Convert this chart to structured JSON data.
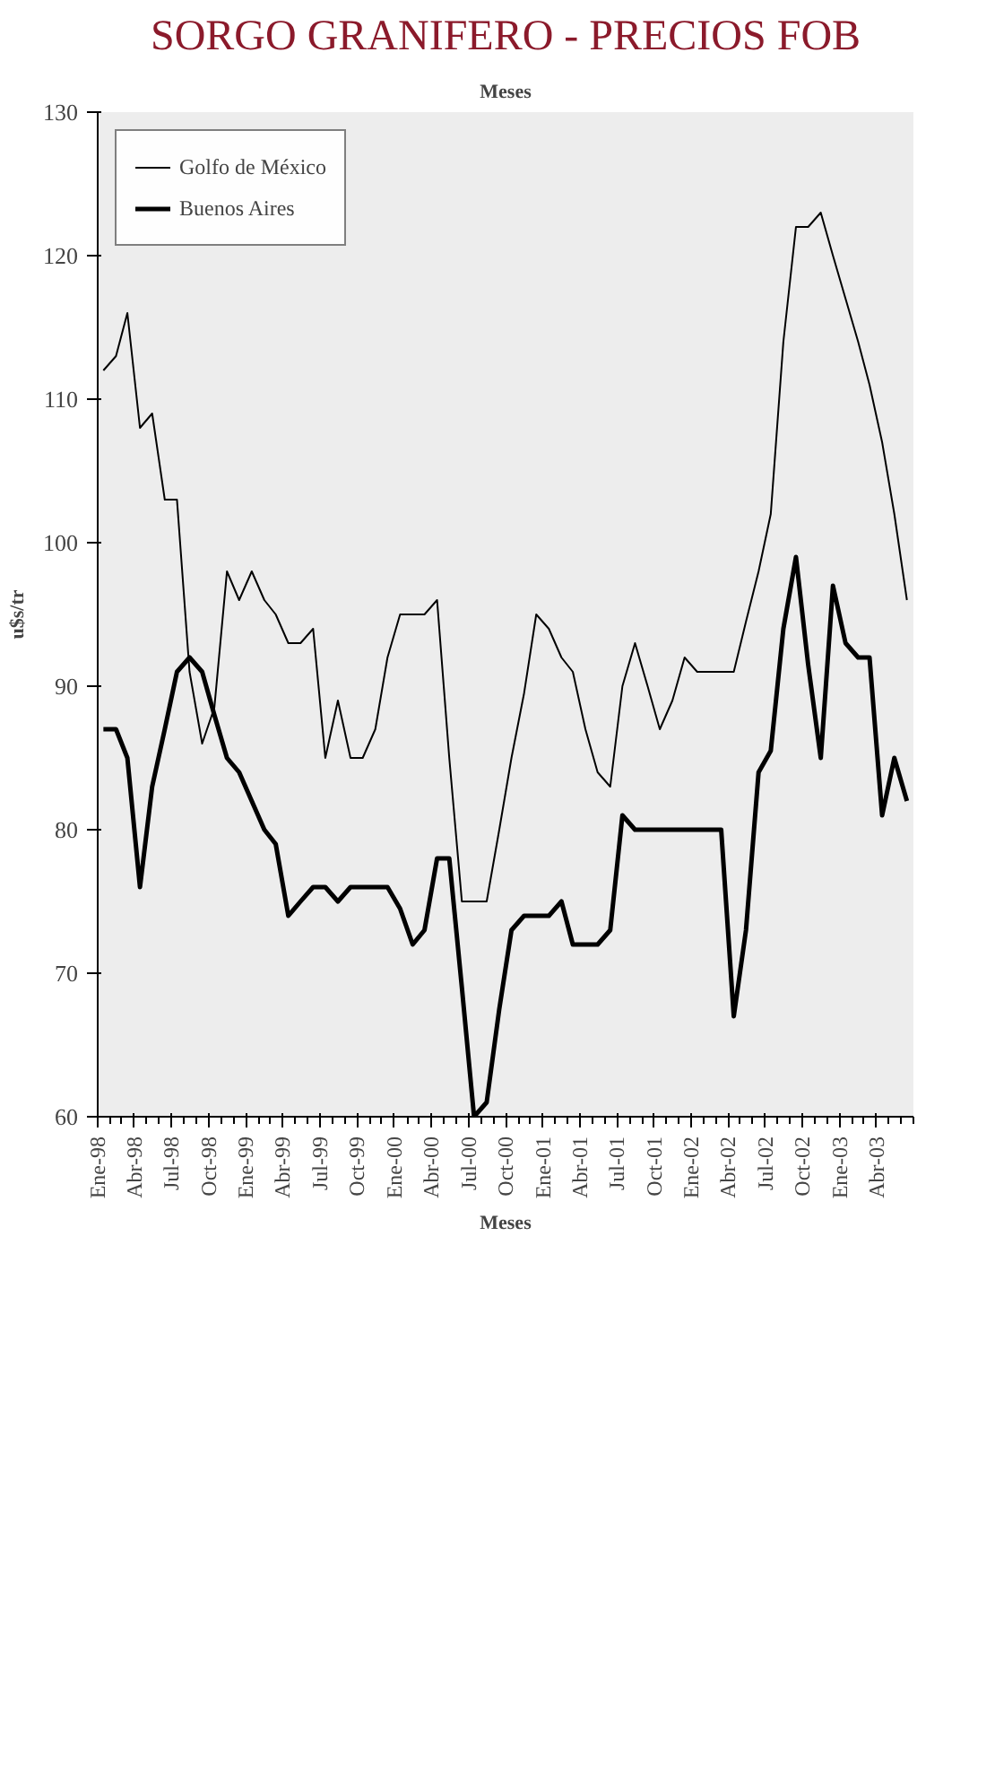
{
  "chart_data": {
    "type": "line",
    "title": "SORGO GRANIFERO - PRECIOS FOB",
    "xlabel": "Meses",
    "ylabel": "u$s/tr",
    "x": [
      "1998-01-15",
      "1998-02-15",
      "1998-03-15",
      "1998-04-15",
      "1998-05-15",
      "1998-06-15",
      "1998-07-15",
      "1998-08-15",
      "1998-09-15",
      "1998-10-15",
      "1998-11-15",
      "1998-12-15",
      "1999-01-15",
      "1999-02-15",
      "1999-03-15",
      "1999-04-15",
      "1999-05-15",
      "1999-06-15",
      "1999-07-15",
      "1999-08-15",
      "1999-09-15",
      "1999-10-15",
      "1999-11-15",
      "1999-12-15",
      "2000-01-15",
      "2000-02-15",
      "2000-03-15",
      "2000-04-15",
      "2000-05-15",
      "2000-06-15",
      "2000-07-15",
      "2000-08-15",
      "2000-09-15",
      "2000-10-15",
      "2000-11-15",
      "2000-12-15",
      "2001-01-15",
      "2001-02-15",
      "2001-03-15",
      "2001-04-15",
      "2001-05-15",
      "2001-06-15",
      "2001-07-15",
      "2001-08-15",
      "2001-09-15",
      "2001-10-15",
      "2001-11-15",
      "2001-12-15",
      "2002-01-15",
      "2002-02-15",
      "2002-03-15",
      "2002-04-15",
      "2002-05-15",
      "2002-06-15",
      "2002-07-15",
      "2002-08-15",
      "2002-09-15",
      "2002-10-15",
      "2002-11-15",
      "2002-12-15",
      "2003-01-15",
      "2003-02-15",
      "2003-03-15",
      "2003-04-15",
      "2003-05-15",
      "2003-06-15"
    ],
    "series": [
      {
        "name": "Golfo de México",
        "color": "#000000",
        "values": [
          112,
          113,
          116,
          108,
          109,
          103,
          103,
          91,
          86,
          88.5,
          98,
          96,
          98,
          96,
          95,
          93,
          93,
          94,
          85,
          89,
          85,
          85,
          87,
          92,
          95,
          95,
          95,
          96,
          85,
          75,
          75,
          75,
          80,
          85,
          89.5,
          95,
          94,
          92,
          91,
          87,
          84,
          83,
          90,
          93,
          90,
          87,
          89,
          92,
          91,
          91,
          91,
          91,
          94.5,
          98,
          102,
          114,
          122,
          122,
          123,
          120,
          117,
          114,
          111,
          107,
          102,
          96
        ]
      },
      {
        "name": "Buenos Aires",
        "color": "#000000",
        "values": [
          87,
          87,
          85,
          76,
          83,
          87,
          91,
          92,
          91,
          88,
          85,
          84,
          82,
          80,
          79,
          74,
          75,
          76,
          76,
          75,
          76,
          76,
          76,
          76,
          74.5,
          72,
          73,
          78,
          78,
          69,
          60,
          61,
          67.5,
          73,
          74,
          74,
          74,
          75,
          72,
          72,
          72,
          73,
          81,
          80,
          80,
          80,
          80,
          80,
          80,
          80,
          80,
          67,
          73,
          84,
          85.5,
          94,
          99,
          91.5,
          85,
          97,
          93,
          92,
          92,
          81,
          85,
          82
        ]
      }
    ],
    "xlim": [
      "1998-01-01",
      "2003-07-01"
    ],
    "xticks": [
      {
        "value": "1998-01-01",
        "label": "Ene-98"
      },
      {
        "value": "1998-02-01",
        "label": null
      },
      {
        "value": "1998-03-01",
        "label": null
      },
      {
        "value": "1998-04-01",
        "label": "Abr-98"
      },
      {
        "value": "1998-05-01",
        "label": null
      },
      {
        "value": "1998-06-01",
        "label": null
      },
      {
        "value": "1998-07-01",
        "label": "Jul-98"
      },
      {
        "value": "1998-08-01",
        "label": null
      },
      {
        "value": "1998-09-01",
        "label": null
      },
      {
        "value": "1998-10-01",
        "label": "Oct-98"
      },
      {
        "value": "1998-11-01",
        "label": null
      },
      {
        "value": "1998-12-01",
        "label": null
      },
      {
        "value": "1999-01-01",
        "label": "Ene-99"
      },
      {
        "value": "1999-02-01",
        "label": null
      },
      {
        "value": "1999-03-01",
        "label": null
      },
      {
        "value": "1999-04-01",
        "label": "Abr-99"
      },
      {
        "value": "1999-05-01",
        "label": null
      },
      {
        "value": "1999-06-01",
        "label": null
      },
      {
        "value": "1999-07-01",
        "label": "Jul-99"
      },
      {
        "value": "1999-08-01",
        "label": null
      },
      {
        "value": "1999-09-01",
        "label": null
      },
      {
        "value": "1999-10-01",
        "label": "Oct-99"
      },
      {
        "value": "1999-11-01",
        "label": null
      },
      {
        "value": "1999-12-01",
        "label": null
      },
      {
        "value": "2000-01-01",
        "label": "Ene-00"
      },
      {
        "value": "2000-02-01",
        "label": null
      },
      {
        "value": "2000-03-01",
        "label": null
      },
      {
        "value": "2000-04-01",
        "label": "Abr-00"
      },
      {
        "value": "2000-05-01",
        "label": null
      },
      {
        "value": "2000-06-01",
        "label": null
      },
      {
        "value": "2000-07-01",
        "label": "Jul-00"
      },
      {
        "value": "2000-08-01",
        "label": null
      },
      {
        "value": "2000-09-01",
        "label": null
      },
      {
        "value": "2000-10-01",
        "label": "Oct-00"
      },
      {
        "value": "2000-11-01",
        "label": null
      },
      {
        "value": "2000-12-01",
        "label": null
      },
      {
        "value": "2001-01-01",
        "label": "Ene-01"
      },
      {
        "value": "2001-02-01",
        "label": null
      },
      {
        "value": "2001-03-01",
        "label": null
      },
      {
        "value": "2001-04-01",
        "label": "Abr-01"
      },
      {
        "value": "2001-05-01",
        "label": null
      },
      {
        "value": "2001-06-01",
        "label": null
      },
      {
        "value": "2001-07-01",
        "label": "Jul-01"
      },
      {
        "value": "2001-08-01",
        "label": null
      },
      {
        "value": "2001-09-01",
        "label": null
      },
      {
        "value": "2001-10-01",
        "label": "Oct-01"
      },
      {
        "value": "2001-11-01",
        "label": null
      },
      {
        "value": "2001-12-01",
        "label": null
      },
      {
        "value": "2002-01-01",
        "label": "Ene-02"
      },
      {
        "value": "2002-02-01",
        "label": null
      },
      {
        "value": "2002-03-01",
        "label": null
      },
      {
        "value": "2002-04-01",
        "label": "Abr-02"
      },
      {
        "value": "2002-05-01",
        "label": null
      },
      {
        "value": "2002-06-01",
        "label": null
      },
      {
        "value": "2002-07-01",
        "label": "Jul-02"
      },
      {
        "value": "2002-08-01",
        "label": null
      },
      {
        "value": "2002-09-01",
        "label": null
      },
      {
        "value": "2002-10-01",
        "label": "Oct-02"
      },
      {
        "value": "2002-11-01",
        "label": null
      },
      {
        "value": "2002-12-01",
        "label": null
      },
      {
        "value": "2003-01-01",
        "label": "Ene-03"
      },
      {
        "value": "2003-02-01",
        "label": null
      },
      {
        "value": "2003-03-01",
        "label": null
      },
      {
        "value": "2003-04-01",
        "label": "Abr-03"
      },
      {
        "value": "2003-05-01",
        "label": null
      },
      {
        "value": "2003-06-01",
        "label": null
      },
      {
        "value": "2003-07-01",
        "label": null
      }
    ],
    "ylim": [
      60,
      130
    ],
    "yticks": [
      60,
      70,
      80,
      90,
      100,
      110,
      120,
      130
    ],
    "legend": "top left",
    "marker": "none",
    "line_style": "solid"
  }
}
